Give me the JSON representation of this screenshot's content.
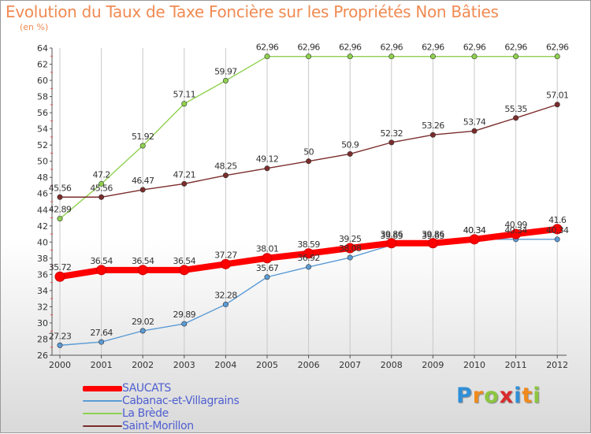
{
  "chart_data": {
    "type": "line",
    "title": "Evolution du Taux de Taxe Foncière sur les Propriétés Non Bâties",
    "subtitle": "(en %)",
    "xlabel": "",
    "ylabel": "",
    "x": [
      "2000",
      "2001",
      "2002",
      "2003",
      "2004",
      "2005",
      "2006",
      "2007",
      "2008",
      "2009",
      "2010",
      "2011",
      "2012"
    ],
    "ylim": [
      26,
      64
    ],
    "yticks": [
      26,
      28,
      30,
      32,
      34,
      36,
      38,
      40,
      42,
      44,
      46,
      48,
      50,
      52,
      54,
      56,
      58,
      60,
      62,
      64
    ],
    "grid": "vertical",
    "legend_position": "bottom-left",
    "series": [
      {
        "name": "SAUCATS",
        "color": "#ff0000",
        "values": [
          35.72,
          36.54,
          36.54,
          36.54,
          37.27,
          38.01,
          38.59,
          39.25,
          39.86,
          39.86,
          40.34,
          40.99,
          41.6
        ],
        "labels": [
          "35.72",
          "36.54",
          "36.54",
          "36.54",
          "37.27",
          "38.01",
          "38.59",
          "39.25",
          "39.86",
          "39.86",
          "40.34",
          "40.99",
          "41.6"
        ]
      },
      {
        "name": "Cabanac-et-Villagrains",
        "color": "#5b9bd5",
        "values": [
          27.23,
          27.64,
          29.02,
          29.89,
          32.28,
          35.67,
          36.92,
          38.08,
          39.63,
          39.63,
          40.34,
          40.34,
          40.34
        ],
        "labels": [
          "27.23",
          "27.64",
          "29.02",
          "29.89",
          "32.28",
          "35.67",
          "36.92",
          "38.08",
          "39.63",
          "39.63",
          "40.34",
          "40.34",
          "40.34"
        ]
      },
      {
        "name": "La Brède",
        "color": "#8fd14f",
        "values": [
          42.89,
          47.2,
          51.92,
          57.11,
          59.97,
          62.96,
          62.96,
          62.96,
          62.96,
          62.96,
          62.96,
          62.96,
          62.96
        ],
        "labels": [
          "42.89",
          "47.2",
          "51.92",
          "57.11",
          "59.97",
          "62.96",
          "62.96",
          "62.96",
          "62.96",
          "62.96",
          "62.96",
          "62.96",
          "62.96"
        ]
      },
      {
        "name": "Saint-Morillon",
        "color": "#7b2c2c",
        "values": [
          45.56,
          45.56,
          46.47,
          47.21,
          48.25,
          49.12,
          50,
          50.9,
          52.32,
          53.26,
          53.74,
          55.35,
          57.01
        ],
        "labels": [
          "45.56",
          "45.56",
          "46.47",
          "47.21",
          "48.25",
          "49.12",
          "50",
          "50.9",
          "52.32",
          "53.26",
          "53.74",
          "55.35",
          "57.01"
        ]
      }
    ]
  },
  "legend": {
    "items": [
      {
        "label": "SAUCATS",
        "color": "#ff0000"
      },
      {
        "label": "Cabanac-et-Villagrains",
        "color": "#5b9bd5"
      },
      {
        "label": "La Brède",
        "color": "#8fd14f"
      },
      {
        "label": "Saint-Morillon",
        "color": "#7b2c2c"
      }
    ]
  },
  "logo": {
    "text": "Proxiti",
    "letter_colors": [
      "#2f8fd8",
      "#f08a1c",
      "#8cc63f",
      "#d92b2b",
      "#2f8fd8",
      "#f08a1c",
      "#8cc63f"
    ]
  }
}
